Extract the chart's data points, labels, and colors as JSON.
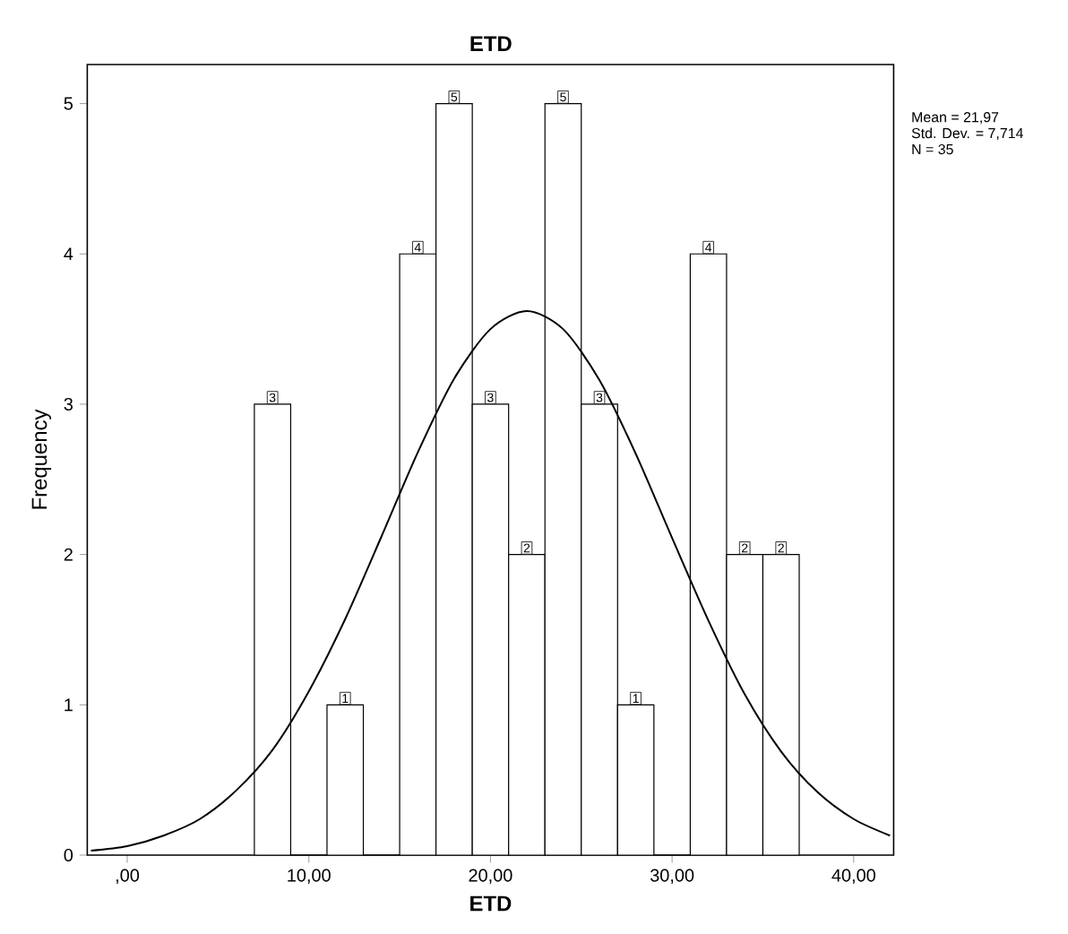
{
  "chart_data": {
    "type": "histogram",
    "title": "ETD",
    "xlabel": "ETD",
    "ylabel": "Frequency",
    "annotations": [
      "Mean = 21,97",
      "Std. Dev. = 7,714",
      "N = 35"
    ],
    "xlim": [
      -2.2,
      42.2
    ],
    "ylim": [
      0,
      5.26
    ],
    "xticks": [
      {
        "value": 0,
        "label": ",00"
      },
      {
        "value": 10,
        "label": "10,00"
      },
      {
        "value": 20,
        "label": "20,00"
      },
      {
        "value": 30,
        "label": "30,00"
      },
      {
        "value": 40,
        "label": "40,00"
      }
    ],
    "yticks": [
      0,
      1,
      2,
      3,
      4,
      5
    ],
    "grid": false,
    "series": [
      {
        "color": "#ffffff",
        "bins": [
          7,
          9,
          11,
          13,
          15,
          17,
          19,
          21,
          23,
          25,
          27,
          29,
          31,
          33,
          35,
          37
        ],
        "values": [
          3,
          0,
          1,
          0,
          4,
          5,
          3,
          2,
          5,
          3,
          1,
          0,
          4,
          2,
          2
        ],
        "value_labels": [
          "3",
          null,
          "1",
          null,
          "4",
          "5",
          "3",
          "2",
          "5",
          "3",
          "1",
          null,
          "4",
          "2",
          "2"
        ]
      },
      {
        "type": "line",
        "color": "#000000",
        "marker": "none",
        "x": [
          -2,
          0,
          2,
          4,
          6,
          8,
          10,
          12,
          14,
          16,
          18,
          20,
          22,
          24,
          26,
          28,
          30,
          32,
          34,
          36,
          38,
          40,
          42
        ],
        "values": [
          0.03,
          0.06,
          0.13,
          0.24,
          0.43,
          0.7,
          1.09,
          1.57,
          2.12,
          2.68,
          3.17,
          3.5,
          3.62,
          3.5,
          3.16,
          2.67,
          2.11,
          1.56,
          1.07,
          0.69,
          0.42,
          0.24,
          0.13
        ]
      }
    ]
  }
}
